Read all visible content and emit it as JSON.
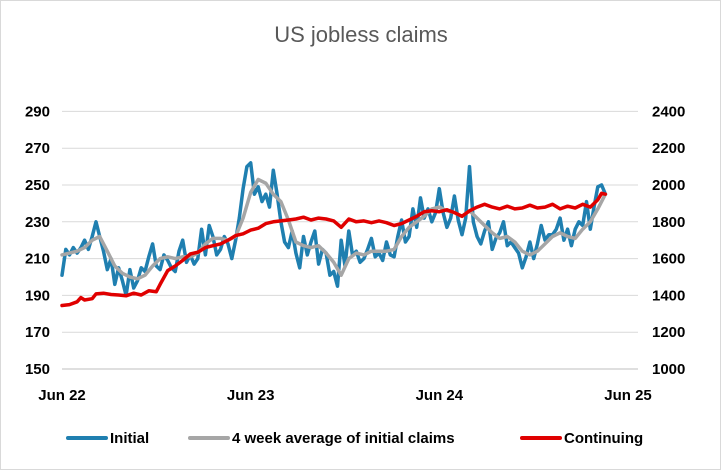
{
  "chart_data": {
    "type": "line",
    "title": "US jobless claims",
    "x_ticks": [
      "Jun 22",
      "Jun 23",
      "Jun 24",
      "Jun 25"
    ],
    "y_left": {
      "ticks": [
        "150",
        "170",
        "190",
        "210",
        "230",
        "250",
        "270",
        "290"
      ],
      "ylim": [
        150,
        300
      ]
    },
    "y_right": {
      "ticks": [
        "1000",
        "1200",
        "1400",
        "1600",
        "1800",
        "2000",
        "2200",
        "2400"
      ],
      "ylim": [
        1000,
        2500
      ]
    },
    "grid": true,
    "legend_position": "bottom",
    "series": [
      {
        "name": "Initial",
        "axis": "left",
        "color": "#1f7fb0",
        "values": [
          [
            2022.48,
            201
          ],
          [
            2022.5,
            215
          ],
          [
            2022.52,
            212
          ],
          [
            2022.54,
            216
          ],
          [
            2022.56,
            213
          ],
          [
            2022.58,
            216
          ],
          [
            2022.6,
            220
          ],
          [
            2022.62,
            215
          ],
          [
            2022.64,
            222
          ],
          [
            2022.66,
            230
          ],
          [
            2022.68,
            222
          ],
          [
            2022.7,
            214
          ],
          [
            2022.72,
            204
          ],
          [
            2022.74,
            210
          ],
          [
            2022.76,
            196
          ],
          [
            2022.78,
            205
          ],
          [
            2022.8,
            198
          ],
          [
            2022.82,
            190
          ],
          [
            2022.84,
            204
          ],
          [
            2022.86,
            194
          ],
          [
            2022.88,
            198
          ],
          [
            2022.9,
            205
          ],
          [
            2022.92,
            203
          ],
          [
            2022.94,
            211
          ],
          [
            2022.96,
            218
          ],
          [
            2022.98,
            206
          ],
          [
            2023.0,
            204
          ],
          [
            2023.02,
            212
          ],
          [
            2023.04,
            209
          ],
          [
            2023.06,
            205
          ],
          [
            2023.08,
            203
          ],
          [
            2023.1,
            214
          ],
          [
            2023.12,
            220
          ],
          [
            2023.14,
            208
          ],
          [
            2023.16,
            212
          ],
          [
            2023.18,
            207
          ],
          [
            2023.2,
            210
          ],
          [
            2023.22,
            226
          ],
          [
            2023.24,
            212
          ],
          [
            2023.26,
            228
          ],
          [
            2023.28,
            222
          ],
          [
            2023.3,
            212
          ],
          [
            2023.32,
            215
          ],
          [
            2023.34,
            222
          ],
          [
            2023.36,
            218
          ],
          [
            2023.38,
            210
          ],
          [
            2023.4,
            220
          ],
          [
            2023.42,
            232
          ],
          [
            2023.44,
            248
          ],
          [
            2023.46,
            260
          ],
          [
            2023.48,
            262
          ],
          [
            2023.5,
            245
          ],
          [
            2023.52,
            249
          ],
          [
            2023.54,
            241
          ],
          [
            2023.56,
            245
          ],
          [
            2023.58,
            238
          ],
          [
            2023.6,
            258
          ],
          [
            2023.62,
            245
          ],
          [
            2023.64,
            230
          ],
          [
            2023.66,
            219
          ],
          [
            2023.68,
            216
          ],
          [
            2023.7,
            225
          ],
          [
            2023.72,
            213
          ],
          [
            2023.74,
            205
          ],
          [
            2023.76,
            222
          ],
          [
            2023.78,
            212
          ],
          [
            2023.8,
            219
          ],
          [
            2023.82,
            225
          ],
          [
            2023.84,
            207
          ],
          [
            2023.86,
            215
          ],
          [
            2023.88,
            213
          ],
          [
            2023.9,
            201
          ],
          [
            2023.92,
            203
          ],
          [
            2023.94,
            195
          ],
          [
            2023.96,
            220
          ],
          [
            2023.98,
            206
          ],
          [
            2024.0,
            225
          ],
          [
            2024.02,
            212
          ],
          [
            2024.04,
            214
          ],
          [
            2024.06,
            208
          ],
          [
            2024.08,
            210
          ],
          [
            2024.1,
            215
          ],
          [
            2024.12,
            221
          ],
          [
            2024.14,
            211
          ],
          [
            2024.16,
            213
          ],
          [
            2024.18,
            209
          ],
          [
            2024.2,
            219
          ],
          [
            2024.22,
            212
          ],
          [
            2024.24,
            211
          ],
          [
            2024.26,
            222
          ],
          [
            2024.28,
            231
          ],
          [
            2024.3,
            219
          ],
          [
            2024.32,
            222
          ],
          [
            2024.34,
            237
          ],
          [
            2024.36,
            227
          ],
          [
            2024.38,
            243
          ],
          [
            2024.4,
            232
          ],
          [
            2024.42,
            237
          ],
          [
            2024.44,
            230
          ],
          [
            2024.46,
            235
          ],
          [
            2024.48,
            248
          ],
          [
            2024.5,
            235
          ],
          [
            2024.52,
            227
          ],
          [
            2024.54,
            232
          ],
          [
            2024.56,
            244
          ],
          [
            2024.58,
            231
          ],
          [
            2024.6,
            223
          ],
          [
            2024.62,
            232
          ],
          [
            2024.64,
            260
          ],
          [
            2024.66,
            230
          ],
          [
            2024.68,
            222
          ],
          [
            2024.7,
            218
          ],
          [
            2024.72,
            225
          ],
          [
            2024.74,
            230
          ],
          [
            2024.76,
            215
          ],
          [
            2024.78,
            221
          ],
          [
            2024.8,
            224
          ],
          [
            2024.82,
            230
          ],
          [
            2024.84,
            217
          ],
          [
            2024.86,
            219
          ],
          [
            2024.88,
            216
          ],
          [
            2024.9,
            213
          ],
          [
            2024.92,
            205
          ],
          [
            2024.94,
            211
          ],
          [
            2024.96,
            219
          ],
          [
            2024.98,
            210
          ],
          [
            2025.0,
            218
          ],
          [
            2025.02,
            228
          ],
          [
            2025.04,
            220
          ],
          [
            2025.06,
            223
          ],
          [
            2025.08,
            223
          ],
          [
            2025.1,
            226
          ],
          [
            2025.12,
            232
          ],
          [
            2025.14,
            220
          ],
          [
            2025.16,
            226
          ],
          [
            2025.18,
            217
          ],
          [
            2025.2,
            226
          ],
          [
            2025.22,
            230
          ],
          [
            2025.24,
            228
          ],
          [
            2025.26,
            241
          ],
          [
            2025.28,
            226
          ],
          [
            2025.3,
            238
          ],
          [
            2025.32,
            249
          ],
          [
            2025.34,
            250
          ],
          [
            2025.36,
            245
          ]
        ]
      },
      {
        "name": "4 week average of initial claims",
        "axis": "left",
        "color": "#a6a6a6",
        "values": [
          [
            2022.48,
            212
          ],
          [
            2022.52,
            213
          ],
          [
            2022.56,
            214
          ],
          [
            2022.6,
            216
          ],
          [
            2022.64,
            220
          ],
          [
            2022.68,
            222
          ],
          [
            2022.72,
            214
          ],
          [
            2022.76,
            206
          ],
          [
            2022.8,
            202
          ],
          [
            2022.84,
            200
          ],
          [
            2022.88,
            199
          ],
          [
            2022.92,
            201
          ],
          [
            2022.96,
            206
          ],
          [
            2023.0,
            210
          ],
          [
            2023.04,
            211
          ],
          [
            2023.08,
            210
          ],
          [
            2023.12,
            211
          ],
          [
            2023.16,
            211
          ],
          [
            2023.2,
            213
          ],
          [
            2023.24,
            218
          ],
          [
            2023.28,
            221
          ],
          [
            2023.32,
            221
          ],
          [
            2023.36,
            220
          ],
          [
            2023.4,
            222
          ],
          [
            2023.44,
            232
          ],
          [
            2023.48,
            246
          ],
          [
            2023.52,
            253
          ],
          [
            2023.56,
            251
          ],
          [
            2023.6,
            245
          ],
          [
            2023.64,
            241
          ],
          [
            2023.68,
            231
          ],
          [
            2023.72,
            219
          ],
          [
            2023.76,
            217
          ],
          [
            2023.8,
            216
          ],
          [
            2023.84,
            217
          ],
          [
            2023.88,
            213
          ],
          [
            2023.92,
            208
          ],
          [
            2023.96,
            201
          ],
          [
            2024.0,
            210
          ],
          [
            2024.04,
            213
          ],
          [
            2024.08,
            212
          ],
          [
            2024.12,
            214
          ],
          [
            2024.16,
            214
          ],
          [
            2024.2,
            214
          ],
          [
            2024.24,
            215
          ],
          [
            2024.28,
            222
          ],
          [
            2024.32,
            227
          ],
          [
            2024.36,
            230
          ],
          [
            2024.4,
            233
          ],
          [
            2024.44,
            237
          ],
          [
            2024.48,
            238
          ],
          [
            2024.52,
            236
          ],
          [
            2024.56,
            235
          ],
          [
            2024.6,
            233
          ],
          [
            2024.64,
            236
          ],
          [
            2024.68,
            232
          ],
          [
            2024.72,
            228
          ],
          [
            2024.76,
            224
          ],
          [
            2024.8,
            221
          ],
          [
            2024.84,
            222
          ],
          [
            2024.88,
            219
          ],
          [
            2024.92,
            214
          ],
          [
            2024.96,
            212
          ],
          [
            2025.0,
            214
          ],
          [
            2025.04,
            218
          ],
          [
            2025.08,
            222
          ],
          [
            2025.12,
            224
          ],
          [
            2025.16,
            222
          ],
          [
            2025.2,
            221
          ],
          [
            2025.24,
            226
          ],
          [
            2025.28,
            230
          ],
          [
            2025.32,
            237
          ],
          [
            2025.36,
            245
          ]
        ]
      },
      {
        "name": "Continuing",
        "axis": "right",
        "color": "#e00000",
        "values": [
          [
            2022.48,
            1345
          ],
          [
            2022.52,
            1350
          ],
          [
            2022.56,
            1365
          ],
          [
            2022.58,
            1388
          ],
          [
            2022.6,
            1375
          ],
          [
            2022.64,
            1382
          ],
          [
            2022.66,
            1408
          ],
          [
            2022.7,
            1412
          ],
          [
            2022.74,
            1405
          ],
          [
            2022.78,
            1402
          ],
          [
            2022.82,
            1398
          ],
          [
            2022.86,
            1412
          ],
          [
            2022.9,
            1402
          ],
          [
            2022.94,
            1425
          ],
          [
            2022.98,
            1420
          ],
          [
            2023.0,
            1460
          ],
          [
            2023.04,
            1535
          ],
          [
            2023.08,
            1560
          ],
          [
            2023.12,
            1590
          ],
          [
            2023.16,
            1625
          ],
          [
            2023.2,
            1635
          ],
          [
            2023.24,
            1660
          ],
          [
            2023.28,
            1670
          ],
          [
            2023.32,
            1680
          ],
          [
            2023.36,
            1700
          ],
          [
            2023.4,
            1725
          ],
          [
            2023.44,
            1735
          ],
          [
            2023.48,
            1755
          ],
          [
            2023.52,
            1765
          ],
          [
            2023.56,
            1790
          ],
          [
            2023.6,
            1800
          ],
          [
            2023.64,
            1805
          ],
          [
            2023.68,
            1810
          ],
          [
            2023.72,
            1815
          ],
          [
            2023.76,
            1825
          ],
          [
            2023.8,
            1810
          ],
          [
            2023.84,
            1820
          ],
          [
            2023.88,
            1815
          ],
          [
            2023.92,
            1805
          ],
          [
            2023.96,
            1770
          ],
          [
            2024.0,
            1815
          ],
          [
            2024.04,
            1800
          ],
          [
            2024.08,
            1805
          ],
          [
            2024.12,
            1795
          ],
          [
            2024.16,
            1805
          ],
          [
            2024.2,
            1795
          ],
          [
            2024.24,
            1780
          ],
          [
            2024.28,
            1790
          ],
          [
            2024.32,
            1810
          ],
          [
            2024.36,
            1830
          ],
          [
            2024.4,
            1855
          ],
          [
            2024.44,
            1860
          ],
          [
            2024.48,
            1855
          ],
          [
            2024.52,
            1865
          ],
          [
            2024.56,
            1850
          ],
          [
            2024.6,
            1830
          ],
          [
            2024.64,
            1860
          ],
          [
            2024.68,
            1880
          ],
          [
            2024.72,
            1895
          ],
          [
            2024.76,
            1880
          ],
          [
            2024.8,
            1870
          ],
          [
            2024.84,
            1885
          ],
          [
            2024.88,
            1870
          ],
          [
            2024.92,
            1875
          ],
          [
            2024.96,
            1890
          ],
          [
            2025.0,
            1875
          ],
          [
            2025.04,
            1880
          ],
          [
            2025.08,
            1895
          ],
          [
            2025.12,
            1870
          ],
          [
            2025.16,
            1885
          ],
          [
            2025.2,
            1875
          ],
          [
            2025.24,
            1895
          ],
          [
            2025.28,
            1880
          ],
          [
            2025.32,
            1920
          ],
          [
            2025.34,
            1955
          ],
          [
            2025.36,
            1950
          ]
        ]
      }
    ]
  }
}
